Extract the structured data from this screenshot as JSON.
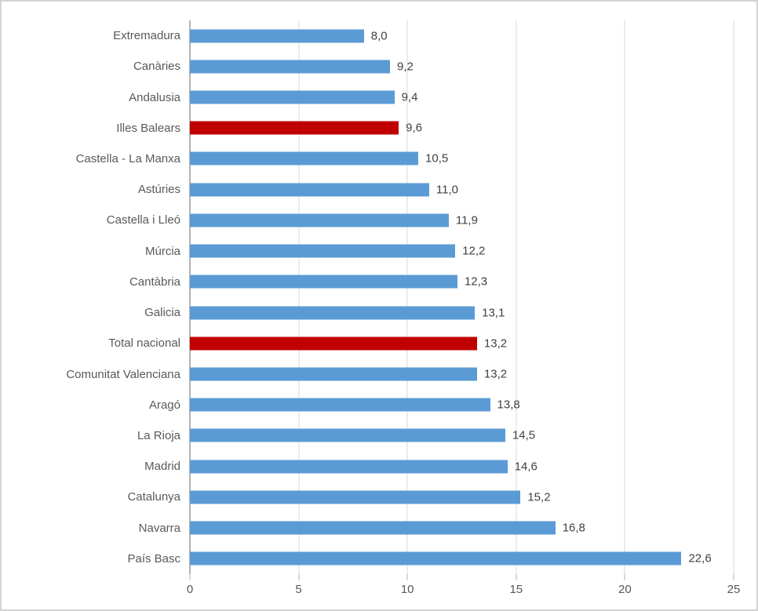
{
  "chart_data": {
    "type": "bar",
    "orientation": "horizontal",
    "title": "",
    "xlabel": "",
    "ylabel": "",
    "xlim": [
      0,
      25
    ],
    "x_ticks": [
      0,
      5,
      10,
      15,
      20,
      25
    ],
    "x_tick_labels": [
      "0",
      "5",
      "10",
      "15",
      "20",
      "25"
    ],
    "grid": true,
    "legend": false,
    "categories": [
      "Extremadura",
      "Canàries",
      "Andalusia",
      "Illes Balears",
      "Castella - La Manxa",
      "Astúries",
      "Castella i Lleó",
      "Múrcia",
      "Cantàbria",
      "Galicia",
      "Total nacional",
      "Comunitat Valenciana",
      "Aragó",
      "La Rioja",
      "Madrid",
      "Catalunya",
      "Navarra",
      "País Basc"
    ],
    "values": [
      8.0,
      9.2,
      9.4,
      9.6,
      10.5,
      11.0,
      11.9,
      12.2,
      12.3,
      13.1,
      13.2,
      13.2,
      13.8,
      14.5,
      14.6,
      15.2,
      16.8,
      22.6
    ],
    "value_labels": [
      "8,0",
      "9,2",
      "9,4",
      "9,6",
      "10,5",
      "11,0",
      "11,9",
      "12,2",
      "12,3",
      "13,1",
      "13,2",
      "13,2",
      "13,8",
      "14,5",
      "14,6",
      "15,2",
      "16,8",
      "22,6"
    ],
    "highlight_indices": [
      3,
      10
    ],
    "colors": {
      "bar": "#5b9bd5",
      "bar_highlight": "#c00000",
      "gridline": "#d9d9d9",
      "axis_line": "#b3b3b3",
      "category_label": "#595959",
      "value_label": "#404040",
      "tick_label": "#595959",
      "frame_border": "#d3d3d3",
      "background": "#ffffff"
    }
  }
}
